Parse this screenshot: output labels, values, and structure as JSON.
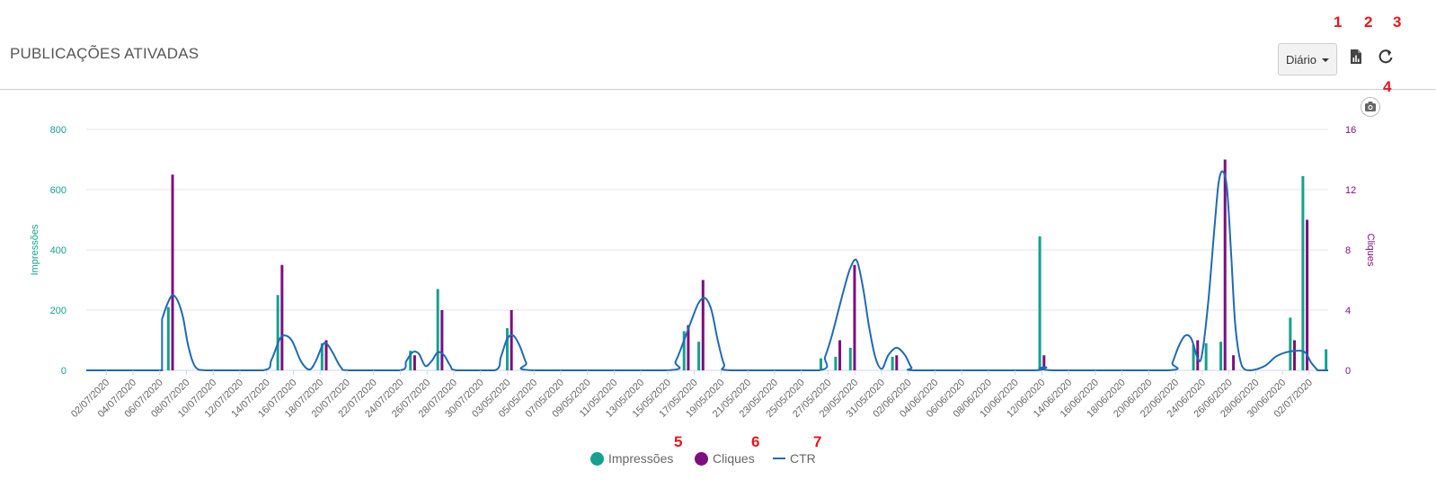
{
  "header": {
    "title": "PUBLICAÇÕES ATIVADAS",
    "period_label": "Diário"
  },
  "annotations": [
    "1",
    "2",
    "3",
    "4",
    "5",
    "6",
    "7"
  ],
  "icons": {
    "export": "file-chart-icon",
    "refresh": "refresh-icon",
    "snapshot": "camera-icon"
  },
  "colors": {
    "impressions": "#15a08f",
    "clicks": "#7b0f7d",
    "ctr": "#1f6ab5",
    "annotation": "#e8141d"
  },
  "chart_data": {
    "type": "bar",
    "x": [
      "02/07/2020",
      "04/07/2020",
      "06/07/2020",
      "08/07/2020",
      "10/07/2020",
      "12/07/2020",
      "14/07/2020",
      "16/07/2020",
      "18/07/2020",
      "20/07/2020",
      "22/07/2020",
      "24/07/2020",
      "26/07/2020",
      "28/07/2020",
      "30/07/2020",
      "03/05/2020",
      "05/05/2020",
      "07/05/2020",
      "09/05/2020",
      "11/05/2020",
      "13/05/2020",
      "15/05/2020",
      "17/05/2020",
      "19/05/2020",
      "21/05/2020",
      "23/05/2020",
      "25/05/2020",
      "27/05/2020",
      "29/05/2020",
      "31/05/2020",
      "02/06/2020",
      "04/06/2020",
      "06/06/2020",
      "08/06/2020",
      "10/06/2020",
      "12/06/2020",
      "14/06/2020",
      "16/06/2020",
      "18/06/2020",
      "20/06/2020",
      "22/06/2020",
      "24/06/2020",
      "26/06/2020",
      "28/06/2020",
      "30/06/2020",
      "02/07/2020"
    ],
    "ylabel": "Impressões",
    "ylabel_right": "Cliques",
    "ylim": [
      0,
      800
    ],
    "ylim_right": [
      0,
      16
    ],
    "yticks": [
      0,
      200,
      400,
      600,
      800
    ],
    "yticks_right": [
      0,
      4,
      8,
      12,
      16
    ],
    "grid": true,
    "legend_position": "bottom-center",
    "series": [
      {
        "name": "Impressões",
        "axis": "left",
        "type": "bar",
        "points": [
          [
            3.9,
            210
          ],
          [
            9.1,
            250
          ],
          [
            11.2,
            90
          ],
          [
            15.4,
            65
          ],
          [
            16.7,
            270
          ],
          [
            20.0,
            140
          ],
          [
            28.4,
            130
          ],
          [
            29.1,
            95
          ],
          [
            34.9,
            40
          ],
          [
            35.6,
            45
          ],
          [
            36.3,
            75
          ],
          [
            38.3,
            45
          ],
          [
            45.3,
            445
          ],
          [
            52.6,
            85
          ],
          [
            53.2,
            90
          ],
          [
            53.9,
            95
          ],
          [
            57.2,
            175
          ],
          [
            57.8,
            645
          ],
          [
            58.9,
            70
          ]
        ]
      },
      {
        "name": "Cliques",
        "axis": "right",
        "type": "bar",
        "points": [
          [
            4.1,
            13
          ],
          [
            9.3,
            7
          ],
          [
            11.4,
            2
          ],
          [
            15.6,
            1
          ],
          [
            16.9,
            4
          ],
          [
            20.2,
            4
          ],
          [
            28.6,
            3
          ],
          [
            29.3,
            6
          ],
          [
            35.8,
            2
          ],
          [
            36.5,
            7
          ],
          [
            38.5,
            1
          ],
          [
            45.5,
            1
          ],
          [
            52.8,
            2
          ],
          [
            54.1,
            14
          ],
          [
            54.5,
            1
          ],
          [
            57.4,
            2
          ],
          [
            58.0,
            10
          ]
        ]
      },
      {
        "name": "CTR",
        "axis": "right",
        "type": "line",
        "points": [
          [
            3.6,
            3.4
          ],
          [
            3.85,
            4.4
          ],
          [
            4.1,
            5.0
          ],
          [
            4.35,
            4.6
          ],
          [
            4.6,
            3.5
          ],
          [
            4.85,
            1.6
          ],
          [
            5.2,
            0.2
          ],
          [
            5.8,
            0
          ],
          [
            8.4,
            0
          ],
          [
            8.8,
            0.7
          ],
          [
            9.2,
            2.1
          ],
          [
            9.5,
            2.3
          ],
          [
            9.8,
            1.9
          ],
          [
            10.2,
            0.6
          ],
          [
            10.6,
            0.05
          ],
          [
            10.9,
            0.6
          ],
          [
            11.2,
            1.6
          ],
          [
            11.4,
            1.8
          ],
          [
            11.7,
            1.2
          ],
          [
            12.1,
            0.2
          ],
          [
            12.5,
            0
          ],
          [
            14.9,
            0
          ],
          [
            15.2,
            0.6
          ],
          [
            15.5,
            1.2
          ],
          [
            15.8,
            1.1
          ],
          [
            16.1,
            0.3
          ],
          [
            16.4,
            0.6
          ],
          [
            16.7,
            1.2
          ],
          [
            17.0,
            1.0
          ],
          [
            17.3,
            0.3
          ],
          [
            17.6,
            0
          ],
          [
            19.4,
            0
          ],
          [
            19.7,
            0.9
          ],
          [
            20.0,
            2.1
          ],
          [
            20.3,
            2.3
          ],
          [
            20.6,
            1.6
          ],
          [
            20.9,
            0.5
          ],
          [
            21.2,
            0
          ],
          [
            27.6,
            0
          ],
          [
            28.0,
            0.6
          ],
          [
            28.4,
            2.0
          ],
          [
            28.8,
            3.5
          ],
          [
            29.1,
            4.5
          ],
          [
            29.4,
            4.8
          ],
          [
            29.7,
            4.0
          ],
          [
            30.0,
            2.0
          ],
          [
            30.3,
            0.4
          ],
          [
            30.6,
            0
          ],
          [
            34.8,
            0
          ],
          [
            35.1,
            0.9
          ],
          [
            35.4,
            2.2
          ],
          [
            35.7,
            3.8
          ],
          [
            36.0,
            5.4
          ],
          [
            36.3,
            6.8
          ],
          [
            36.6,
            7.3
          ],
          [
            36.9,
            5.5
          ],
          [
            37.2,
            2.8
          ],
          [
            37.5,
            0.8
          ],
          [
            37.8,
            0.1
          ],
          [
            38.1,
            1.0
          ],
          [
            38.5,
            1.5
          ],
          [
            38.9,
            1.0
          ],
          [
            39.2,
            0.2
          ],
          [
            39.5,
            0
          ],
          [
            44.9,
            0
          ],
          [
            45.3,
            0.15
          ],
          [
            45.6,
            0.2
          ],
          [
            46.0,
            0
          ],
          [
            51.4,
            0
          ],
          [
            51.6,
            0.5
          ],
          [
            51.9,
            1.6
          ],
          [
            52.2,
            2.3
          ],
          [
            52.5,
            2.1
          ],
          [
            52.8,
            0.8
          ],
          [
            53.0,
            1.0
          ],
          [
            53.3,
            4.5
          ],
          [
            53.6,
            9.5
          ],
          [
            53.8,
            12.5
          ],
          [
            54.0,
            13.2
          ],
          [
            54.2,
            12.0
          ],
          [
            54.4,
            7.5
          ],
          [
            54.6,
            2.8
          ],
          [
            54.9,
            0.3
          ],
          [
            55.3,
            0
          ],
          [
            56.0,
            0.3
          ],
          [
            56.5,
            0.9
          ],
          [
            57.0,
            1.2
          ],
          [
            57.5,
            1.3
          ],
          [
            57.9,
            1.2
          ],
          [
            58.2,
            0.5
          ],
          [
            58.5,
            0
          ]
        ]
      }
    ],
    "x_index_range": [
      0,
      59
    ]
  }
}
